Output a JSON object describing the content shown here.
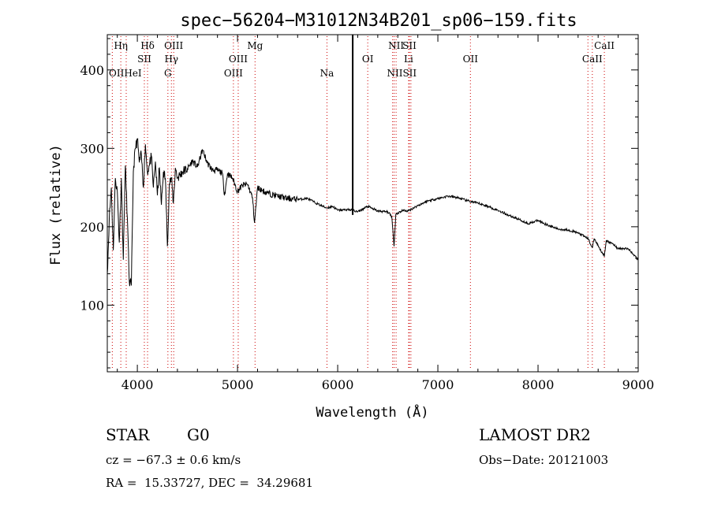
{
  "chart_data": {
    "type": "line",
    "title": "spec−56204−M31012N34B201_sp06−159.fits",
    "xlabel": "Wavelength (Å)",
    "ylabel": "Flux (relative)",
    "xlim": [
      3700,
      9000
    ],
    "ylim": [
      15,
      445
    ],
    "xticks": [
      4000,
      5000,
      6000,
      7000,
      8000,
      9000
    ],
    "yticks": [
      100,
      200,
      300,
      400
    ],
    "grid": false,
    "legend": "none",
    "line_color": "#000000",
    "marker_color": "#cc0000",
    "spectrum": {
      "x": [
        3700,
        3720,
        3740,
        3760,
        3780,
        3800,
        3820,
        3840,
        3860,
        3880,
        3900,
        3920,
        3940,
        3960,
        3980,
        4000,
        4020,
        4040,
        4060,
        4080,
        4100,
        4120,
        4140,
        4160,
        4180,
        4200,
        4220,
        4240,
        4260,
        4280,
        4300,
        4320,
        4340,
        4360,
        4380,
        4400,
        4450,
        4500,
        4550,
        4600,
        4650,
        4700,
        4750,
        4800,
        4850,
        4870,
        4900,
        4950,
        5000,
        5050,
        5100,
        5150,
        5170,
        5200,
        5250,
        5300,
        5400,
        5500,
        5600,
        5700,
        5800,
        5890,
        5950,
        6000,
        6100,
        6150,
        6200,
        6300,
        6400,
        6500,
        6540,
        6563,
        6580,
        6650,
        6700,
        6800,
        6900,
        7000,
        7100,
        7200,
        7300,
        7400,
        7500,
        7600,
        7700,
        7800,
        7900,
        8000,
        8100,
        8200,
        8300,
        8400,
        8500,
        8542,
        8560,
        8600,
        8662,
        8680,
        8750,
        8800,
        8900,
        8950,
        9000
      ],
      "y": [
        140,
        210,
        250,
        170,
        262,
        245,
        180,
        262,
        158,
        278,
        212,
        130,
        125,
        270,
        300,
        312,
        282,
        292,
        250,
        305,
        270,
        278,
        290,
        250,
        283,
        240,
        275,
        228,
        270,
        262,
        175,
        255,
        262,
        230,
        275,
        262,
        270,
        274,
        284,
        276,
        298,
        281,
        272,
        272,
        268,
        240,
        268,
        262,
        245,
        253,
        254,
        237,
        205,
        250,
        246,
        243,
        239,
        236,
        235,
        236,
        229,
        224,
        226,
        221,
        222,
        221,
        219,
        226,
        220,
        219,
        213,
        175,
        216,
        221,
        220,
        227,
        233,
        236,
        239,
        237,
        233,
        230,
        226,
        221,
        215,
        210,
        204,
        208,
        202,
        197,
        196,
        192,
        185,
        173,
        185,
        176,
        162,
        182,
        178,
        172,
        172,
        165,
        158
      ]
    },
    "line_markers": [
      {
        "label": "Hη",
        "wl": 3835,
        "row": 0
      },
      {
        "label": "OIIHeI",
        "wl": 3880,
        "row": 2
      },
      {
        "label": "Hδ",
        "wl": 4102,
        "row": 0
      },
      {
        "label": "SII",
        "wl": 4070,
        "row": 1
      },
      {
        "label": "OIII",
        "wl": 4363,
        "row": 0
      },
      {
        "label": "Hγ",
        "wl": 4340,
        "row": 1
      },
      {
        "label": "G",
        "wl": 4305,
        "row": 2
      },
      {
        "label": "Mg",
        "wl": 5175,
        "row": 0
      },
      {
        "label": "OIII",
        "wl": 5007,
        "row": 1
      },
      {
        "label": "OIII",
        "wl": 4959,
        "row": 2
      },
      {
        "label": "Na",
        "wl": 5893,
        "row": 2
      },
      {
        "label": "NII",
        "wl": 6583,
        "row": 0
      },
      {
        "label": "SII",
        "wl": 6716,
        "row": 0
      },
      {
        "label": "OI",
        "wl": 6300,
        "row": 1
      },
      {
        "label": "Li",
        "wl": 6708,
        "row": 1
      },
      {
        "label": "NIISII",
        "wl": 6640,
        "row": 2
      },
      {
        "label": "OII",
        "wl": 7325,
        "row": 1
      },
      {
        "label": "CaII",
        "wl": 8662,
        "row": 0
      },
      {
        "label": "CaII",
        "wl": 8542,
        "row": 1
      }
    ],
    "marker_lines": [
      3750,
      3835,
      3889,
      4070,
      4102,
      4305,
      4340,
      4363,
      4959,
      5007,
      5175,
      5893,
      6300,
      6548,
      6563,
      6583,
      6708,
      6716,
      6731,
      7325,
      8498,
      8542,
      8662
    ],
    "vertical_bar": {
      "wl": 6150,
      "y_from": 215,
      "y_to": 445
    }
  },
  "info": {
    "object_class": "STAR",
    "subclass": "G0",
    "survey": "LAMOST DR2",
    "cz": "cz = −67.3 ± 0.6 km/s",
    "obs_date": "Obs−Date: 20121003",
    "coords": "RA =  15.33727, DEC =  34.29681"
  }
}
